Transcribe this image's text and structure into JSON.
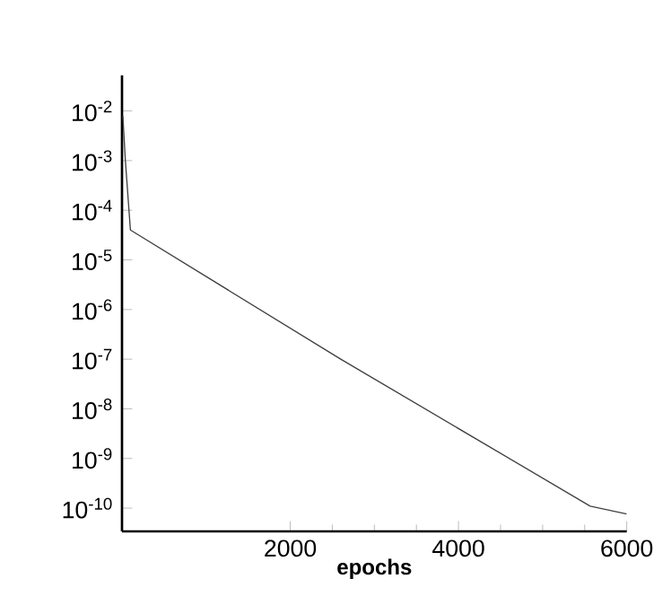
{
  "chart_data": {
    "type": "line",
    "xlabel": "epochs",
    "log": "y",
    "grid": false,
    "marker": "none",
    "line_style": "solid",
    "xlim": [
      0,
      6000
    ],
    "ylim": [
      3.4e-11,
      0.052
    ],
    "xticks": [
      2000,
      4000,
      6000
    ],
    "yticks": [
      {
        "value": 0.01,
        "label": "10$^{-2}$"
      },
      {
        "value": 0.001,
        "label": "10$^{-3}$"
      },
      {
        "value": 0.0001,
        "label": "10$^{-4}$"
      },
      {
        "value": 1e-05,
        "label": "10$^{-5}$"
      },
      {
        "value": 1e-06,
        "label": "10$^{-6}$"
      },
      {
        "value": 1e-07,
        "label": "10$^{-7}$"
      },
      {
        "value": 1e-08,
        "label": "10$^{-8}$"
      },
      {
        "value": 1e-09,
        "label": "10$^{-9}$"
      },
      {
        "value": 1e-10,
        "label": "10$^{-10}$"
      }
    ],
    "series": [
      {
        "color": "#404040",
        "x": [
          10,
          40,
          70,
          100,
          2600,
          5565,
          6000
        ],
        "values": [
          0.008,
          0.001,
          0.0002,
          4e-05,
          1e-07,
          1.1e-10,
          7.6e-11
        ]
      }
    ]
  }
}
